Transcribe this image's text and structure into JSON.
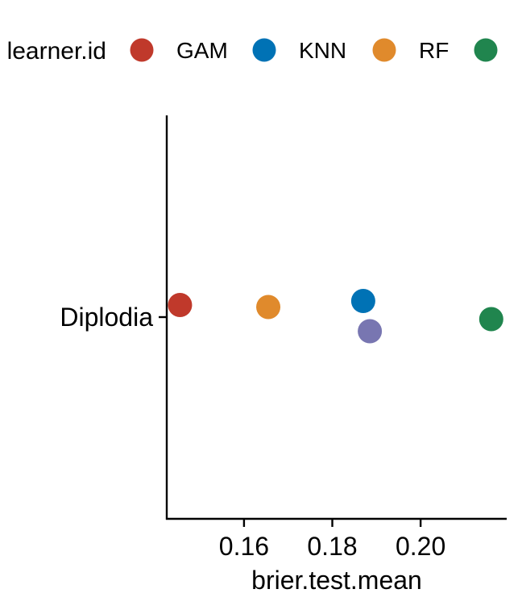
{
  "chart_data": {
    "type": "scatter",
    "xlabel": "brier.test.mean",
    "ylabel": "",
    "categories": [
      "Diplodia"
    ],
    "x_ticks": [
      0.16,
      0.18,
      0.2
    ],
    "x_tick_labels": [
      "0.16",
      "0.18",
      "0.20"
    ],
    "xlim": [
      0.1425,
      0.2195
    ],
    "grid": false,
    "legend": {
      "title": "learner.id",
      "position": "top",
      "entries": [
        {
          "label": "GAM",
          "color": "#C0392B"
        },
        {
          "label": "KNN",
          "color": "#0072B5"
        },
        {
          "label": "RF",
          "color": "#E08A2C"
        },
        {
          "label": "",
          "color": "#20854E"
        }
      ]
    },
    "series": [
      {
        "name": "GAM",
        "color": "#C0392B",
        "points": [
          {
            "category": "Diplodia",
            "x": 0.1455,
            "jitter": 0.06
          }
        ]
      },
      {
        "name": "KNN",
        "color": "#0072B5",
        "points": [
          {
            "category": "Diplodia",
            "x": 0.187,
            "jitter": 0.08
          }
        ]
      },
      {
        "name": "RF",
        "color": "#E08A2C",
        "points": [
          {
            "category": "Diplodia",
            "x": 0.1655,
            "jitter": 0.05
          }
        ]
      },
      {
        "name": "",
        "color": "#20854E",
        "points": [
          {
            "category": "Diplodia",
            "x": 0.216,
            "jitter": -0.01
          }
        ]
      },
      {
        "name": "",
        "color": "#7876B1",
        "points": [
          {
            "category": "Diplodia",
            "x": 0.1885,
            "jitter": -0.07
          }
        ]
      }
    ]
  }
}
